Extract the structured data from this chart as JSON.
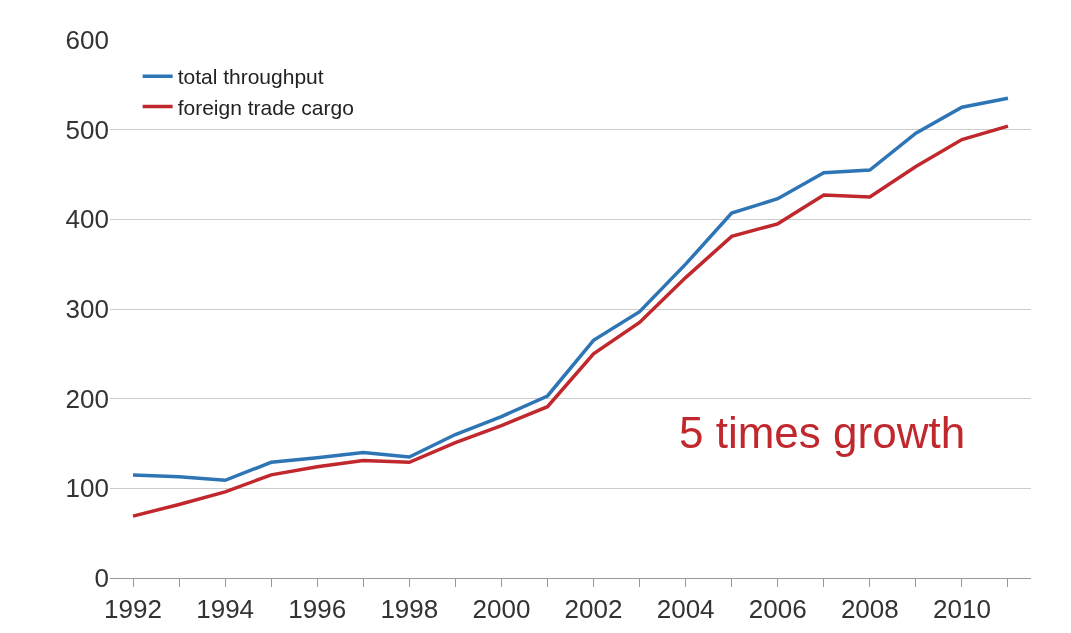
{
  "chart_data": {
    "type": "line",
    "x": [
      1992,
      1993,
      1994,
      1995,
      1996,
      1997,
      1998,
      1999,
      2000,
      2001,
      2002,
      2003,
      2004,
      2005,
      2006,
      2007,
      2008,
      2009,
      2010,
      2011
    ],
    "series": [
      {
        "name": "total throughput",
        "color": "#2e75b6",
        "values": [
          115,
          113,
          109,
          129,
          134,
          140,
          135,
          160,
          180,
          203,
          265,
          297,
          350,
          407,
          423,
          452,
          455,
          496,
          525,
          535
        ]
      },
      {
        "name": "foreign trade cargo",
        "color": "#c0282d",
        "values": [
          69,
          82,
          96,
          115,
          124,
          131,
          129,
          151,
          170,
          191,
          250,
          285,
          335,
          381,
          395,
          427,
          425,
          459,
          489,
          504
        ]
      }
    ],
    "xlim": [
      1991.5,
      2011.5
    ],
    "xticks": [
      1992,
      {
        "value": 1993,
        "label": null
      },
      1994,
      {
        "value": 1995,
        "label": null
      },
      1996,
      {
        "value": 1997,
        "label": null
      },
      1998,
      {
        "value": 1999,
        "label": null
      },
      2000,
      {
        "value": 2001,
        "label": null
      },
      2002,
      {
        "value": 2003,
        "label": null
      },
      2004,
      {
        "value": 2005,
        "label": null
      },
      2006,
      {
        "value": 2007,
        "label": null
      },
      2008,
      {
        "value": 2009,
        "label": null
      },
      2010,
      {
        "value": 2011,
        "label": null
      }
    ],
    "ylim": [
      0,
      600
    ],
    "yticks": [
      0,
      100,
      200,
      300,
      400,
      500,
      600
    ],
    "grid": "y",
    "legend": "top left",
    "marker": "none",
    "line_style": "solid",
    "annotations": [
      "5 times growth"
    ]
  }
}
